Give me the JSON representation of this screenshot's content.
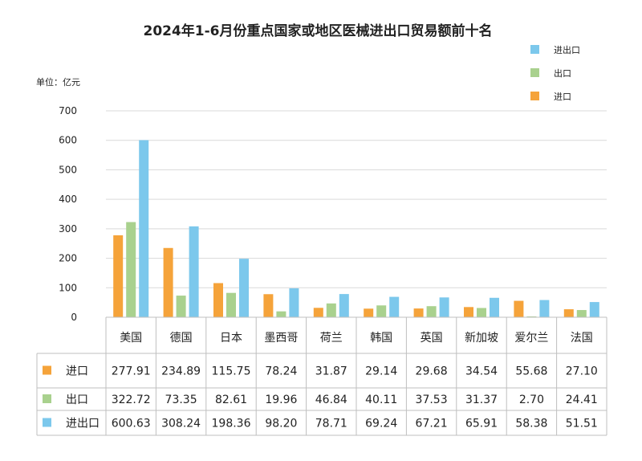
{
  "chart_data": {
    "type": "bar",
    "title": "2024年1-6月份重点国家或地区医械进出口贸易额前十名",
    "unit_label": "单位：亿元",
    "ylim": [
      0,
      700
    ],
    "yticks": [
      "0",
      "100",
      "200",
      "300",
      "400",
      "500",
      "600",
      "700"
    ],
    "ytick_values": [
      0,
      100,
      200,
      300,
      400,
      500,
      600,
      700
    ],
    "grid": true,
    "legend_position": "top-right",
    "categories": [
      "美国",
      "德国",
      "日本",
      "墨西哥",
      "荷兰",
      "韩国",
      "英国",
      "新加坡",
      "爱尔兰",
      "法国"
    ],
    "series": [
      {
        "name": "进口",
        "color": "#f5a33a",
        "values": [
          277.91,
          234.89,
          115.75,
          78.24,
          31.87,
          29.14,
          29.68,
          34.54,
          55.68,
          27.1
        ],
        "labels": [
          "277.91",
          "234.89",
          "115.75",
          "78.24",
          "31.87",
          "29.14",
          "29.68",
          "34.54",
          "55.68",
          "27.10"
        ]
      },
      {
        "name": "出口",
        "color": "#a9d18e",
        "values": [
          322.72,
          73.35,
          82.61,
          19.96,
          46.84,
          40.11,
          37.53,
          31.37,
          2.7,
          24.41
        ],
        "labels": [
          "322.72",
          "73.35",
          "82.61",
          "19.96",
          "46.84",
          "40.11",
          "37.53",
          "31.37",
          "2.70",
          "24.41"
        ]
      },
      {
        "name": "进出口",
        "color": "#7cc8ec",
        "values": [
          600.63,
          308.24,
          198.36,
          98.2,
          78.71,
          69.24,
          67.21,
          65.91,
          58.38,
          51.51
        ],
        "labels": [
          "600.63",
          "308.24",
          "198.36",
          "98.20",
          "78.71",
          "69.24",
          "67.21",
          "65.91",
          "58.38",
          "51.51"
        ]
      }
    ],
    "legend_order": [
      "进出口",
      "出口",
      "进口"
    ]
  }
}
